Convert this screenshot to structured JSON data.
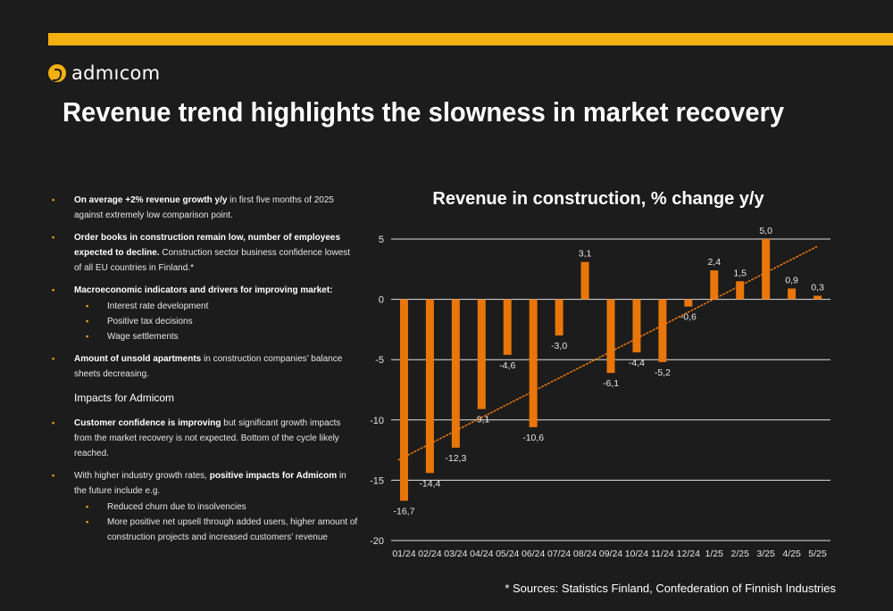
{
  "brand": {
    "name": "admıcom",
    "accent_color": "#f5b012"
  },
  "page_title": "Revenue trend highlights the slowness in market recovery",
  "left_panel": {
    "b1": {
      "bold": "On average +2% revenue growth y/y",
      "text": " in first five months of 2025 against extremely low comparison point."
    },
    "b2": {
      "bold": "Order books in construction remain low, number of employees expected to decline.",
      "text": " Construction sector business confidence lowest of all EU countries in Finland.*"
    },
    "b3": {
      "bold": "Macroeconomic indicators and drivers for improving market:",
      "subs": [
        "Interest rate development",
        "Positive tax decisions",
        "Wage settlements"
      ]
    },
    "b4": {
      "bold": "Amount of unsold apartments",
      "text": " in construction companies’ balance sheets decreasing."
    },
    "impacts_heading": "Impacts for Admicom",
    "b5": {
      "bold": "Customer confidence is improving",
      "text": " but significant growth impacts from the market recovery is not expected. Bottom of the cycle likely reached."
    },
    "b6": {
      "pre": "With higher industry growth rates, ",
      "bold": "positive impacts for Admicom",
      "text": " in the future include e.g.",
      "subs": [
        "Reduced churn due to insolvencies",
        "More positive net upsell through added users, higher amount of construction projects and increased customers’ revenue"
      ]
    }
  },
  "chart_data": {
    "type": "bar",
    "title": "Revenue in construction, % change y/y",
    "xlabel": "",
    "ylabel": "",
    "categories": [
      "01/24",
      "02/24",
      "03/24",
      "04/24",
      "05/24",
      "06/24",
      "07/24",
      "08/24",
      "09/24",
      "10/24",
      "11/24",
      "12/24",
      "1/25",
      "2/25",
      "3/25",
      "4/25",
      "5/25"
    ],
    "values": [
      -16.7,
      -14.4,
      -12.3,
      -9.1,
      -4.6,
      -10.6,
      -3.0,
      3.1,
      -6.1,
      -4.4,
      -5.2,
      -0.6,
      2.4,
      1.5,
      5.0,
      0.9,
      0.3
    ],
    "data_labels": [
      "-16,7",
      "-14,4",
      "-12,3",
      "-9,1",
      "-4,6",
      "-10,6",
      "-3,0",
      "3,1",
      "-6,1",
      "-4,4",
      "-5,2",
      "-0,6",
      "2,4",
      "1,5",
      "5,0",
      "0,9",
      "0,3"
    ],
    "yticks": [
      5,
      0,
      -5,
      -10,
      -15,
      -20
    ],
    "ylim": [
      -20,
      5
    ],
    "grid": true,
    "trendline": {
      "style": "dotted",
      "type": "linear"
    },
    "bar_color": "#e8760a",
    "trend_color": "#e8760a"
  },
  "source_note": "* Sources: Statistics Finland, Confederation of Finnish Industries"
}
